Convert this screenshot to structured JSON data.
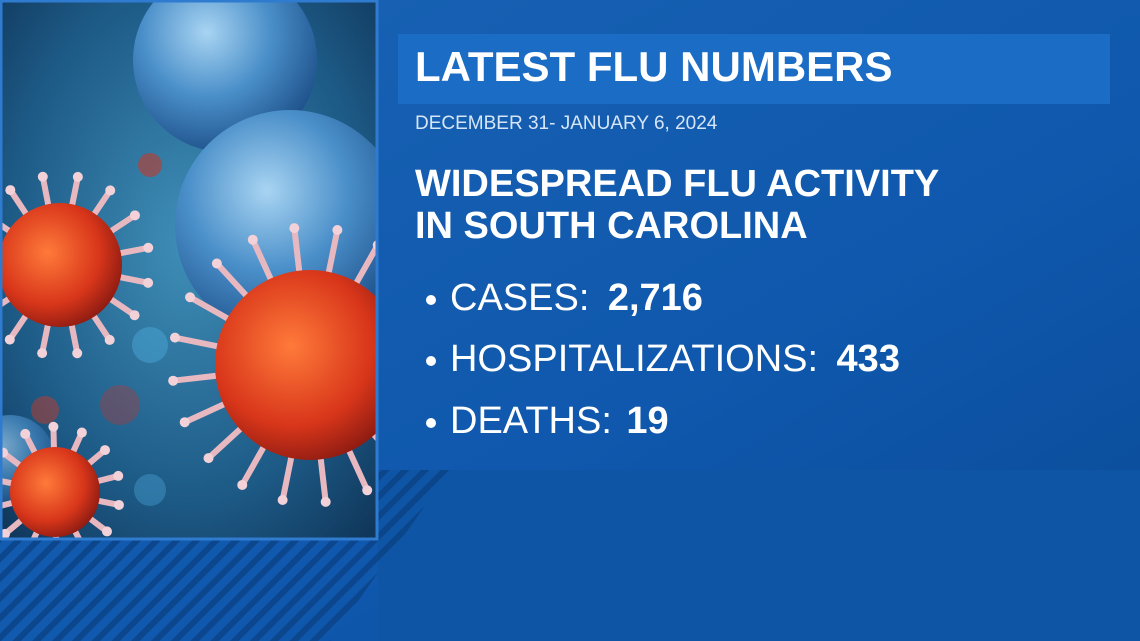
{
  "title": "LATEST FLU NUMBERS",
  "date_range": "DECEMBER 31- JANUARY 6, 2024",
  "headline": [
    "WIDESPREAD FLU ACTIVITY",
    "IN SOUTH CAROLINA"
  ],
  "stats": [
    {
      "label": "CASES:",
      "value": "2,716"
    },
    {
      "label": "HOSPITALIZATIONS:",
      "value": "433"
    },
    {
      "label": "DEATHS:",
      "value": "19"
    }
  ]
}
